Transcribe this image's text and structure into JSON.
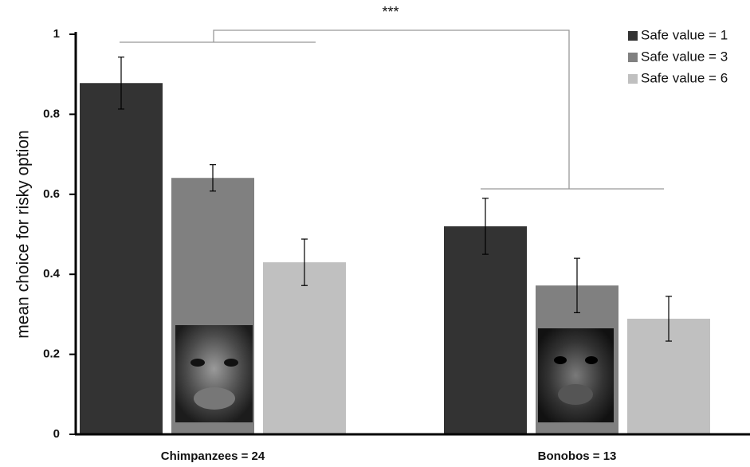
{
  "chart_data": {
    "type": "bar",
    "annotation": "***",
    "y_label": "mean choice for risky option",
    "categories": [
      "Chimpanzees = 24",
      "Bonobos = 13"
    ],
    "series": [
      {
        "name": "Safe value = 1",
        "color": "#333333",
        "values": [
          0.878,
          0.52
        ],
        "errors": [
          0.065,
          0.07
        ]
      },
      {
        "name": "Safe value = 3",
        "color": "#808080",
        "values": [
          0.641,
          0.372
        ],
        "errors": [
          0.033,
          0.068
        ]
      },
      {
        "name": "Safe value = 6",
        "color": "#c0c0c0",
        "values": [
          0.43,
          0.289
        ],
        "errors": [
          0.058,
          0.056
        ]
      }
    ],
    "ylim": [
      0,
      1
    ],
    "yticks": [
      0,
      0.2,
      0.4,
      0.6,
      0.8,
      1
    ],
    "legend": "top-right"
  }
}
